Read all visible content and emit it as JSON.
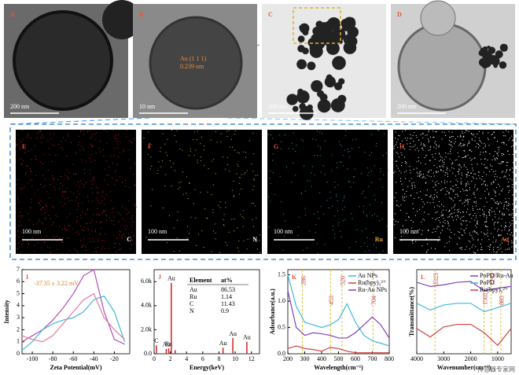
{
  "images": [
    {
      "label": "A",
      "scale_bar": "200 nm"
    },
    {
      "label": "B",
      "scale_bar": "10 nm",
      "annotation": [
        "Au (1 1 1)",
        "0.239 nm"
      ]
    },
    {
      "label": "C",
      "scale_bar": "200 nm"
    },
    {
      "label": "D",
      "scale_bar": "200 nm"
    }
  ],
  "maps": [
    {
      "label": "E",
      "scale_bar": "100 nm",
      "element": "C"
    },
    {
      "label": "F",
      "scale_bar": "100 nm",
      "element": "N"
    },
    {
      "label": "G",
      "scale_bar": "100 nm",
      "element": "Ru"
    },
    {
      "label": "H",
      "scale_bar": "100 nm",
      "element": "Au"
    }
  ],
  "chart_data": [
    {
      "type": "line",
      "label": "I",
      "y_label": "Intensity",
      "x_label": "Zeta Potential(mV)",
      "annotation": "-37.35 ± 3.22 mV",
      "xlim": [
        -110,
        -5
      ],
      "ylim": [
        0,
        7
      ],
      "xticks": [
        -100,
        -80,
        -60,
        -40,
        -20
      ],
      "yticks": [
        0,
        1,
        2,
        3,
        4,
        5,
        6,
        7
      ],
      "x": [
        -110,
        -100,
        -90,
        -80,
        -70,
        -60,
        -50,
        -40,
        -30,
        -20,
        -10
      ],
      "series": [
        {
          "color": "#b04fb8",
          "values": [
            1.0,
            1.5,
            2.0,
            2.8,
            3.8,
            5.0,
            6.5,
            7.0,
            3.5,
            1.2,
            0.8
          ]
        },
        {
          "color": "#3fb8d8",
          "values": [
            0.3,
            1.0,
            2.0,
            2.5,
            2.8,
            3.0,
            3.5,
            4.5,
            4.8,
            3.5,
            1.0
          ]
        },
        {
          "color": "#e07aa0",
          "values": [
            1.5,
            1.2,
            1.0,
            1.5,
            2.5,
            3.5,
            4.5,
            5.0,
            3.0,
            2.0,
            1.2
          ]
        }
      ]
    },
    {
      "type": "bar",
      "label": "J",
      "x_label": "Energy(keV)",
      "color": "#d02020",
      "xlim": [
        0,
        13
      ],
      "ylim": [
        0,
        7000
      ],
      "xticks": [
        0,
        2,
        4,
        6,
        8,
        10,
        12
      ],
      "yticks": [
        {
          "value": 0,
          "label": "0.0"
        },
        {
          "value": 2000,
          "label": "2.0k"
        },
        {
          "value": 4000,
          "label": "4.0k"
        },
        {
          "value": 6000,
          "label": "6.0k"
        }
      ],
      "x": [
        0.28,
        1.5,
        1.8,
        2.12,
        2.6,
        8.5,
        9.71,
        11.44
      ],
      "values": [
        700,
        400,
        450,
        5900,
        300,
        500,
        1300,
        1000
      ],
      "peak_labels": [
        "C",
        "Au",
        "Ru",
        "Au",
        null,
        "Au",
        "Au",
        "Au"
      ],
      "table": {
        "header": [
          "Element",
          "at%"
        ],
        "rows": [
          [
            "Au",
            86.53
          ],
          [
            "Ru",
            1.14
          ],
          [
            "C",
            11.43
          ],
          [
            "N",
            0.9
          ]
        ]
      }
    },
    {
      "type": "line",
      "label": "K",
      "y_label": "Adsorbance(a.u.)",
      "x_label": "Wavelength(cm⁻¹)",
      "xlim": [
        200,
        800
      ],
      "ylim": [
        0,
        1.6
      ],
      "xticks": [
        200,
        300,
        400,
        500,
        600,
        700,
        800
      ],
      "yticks": [
        {
          "value": 0,
          "label": "0.0"
        },
        0.5,
        {
          "value": 1,
          "label": "1.0"
        },
        1.5
      ],
      "markers": [
        286,
        453,
        520,
        704
      ],
      "x": [
        200,
        250,
        300,
        350,
        400,
        450,
        500,
        550,
        600,
        650,
        700,
        750,
        800
      ],
      "series": [
        {
          "name": "Au NPs",
          "color": "#3fb8d8",
          "values": [
            1.5,
            0.9,
            0.6,
            0.55,
            0.5,
            0.55,
            0.65,
            0.95,
            0.6,
            0.35,
            0.25,
            0.2,
            0.15
          ]
        },
        {
          "name": "Ru(bpy)₃²⁺",
          "color": "#d04040",
          "values": [
            0.1,
            0.15,
            0.1,
            0.08,
            0.05,
            0.12,
            0.1,
            0.05,
            0.02,
            0.02,
            0.02,
            0.02,
            0.02
          ]
        },
        {
          "name": "Ru-Au NPs",
          "color": "#8040c0",
          "values": [
            1.2,
            0.5,
            0.35,
            0.4,
            0.38,
            0.35,
            0.3,
            0.3,
            0.4,
            0.55,
            0.7,
            0.55,
            0.3
          ]
        }
      ]
    },
    {
      "type": "line",
      "label": "L",
      "y_label": "Transmittance(%)",
      "x_label": "Wavenumber(cm⁻¹)",
      "xlim": [
        4000,
        500
      ],
      "ylim": [
        0,
        10
      ],
      "xticks": [
        4000,
        3000,
        2000,
        1000
      ],
      "markers": [
        3323,
        1502,
        1242,
        883
      ],
      "x": [
        4000,
        3500,
        3000,
        2500,
        2000,
        1500,
        1000,
        500
      ],
      "series": [
        {
          "name": "PoPD/Ru-Au",
          "color": "#8040c0",
          "values": [
            8.5,
            8.0,
            8.2,
            8.5,
            8.6,
            7.5,
            7.8,
            8
          ]
        },
        {
          "name": "PoPD",
          "color": "#3fb8d8",
          "values": [
            6,
            5.2,
            5.8,
            6,
            6,
            5,
            5.5,
            6
          ]
        },
        {
          "name": "Ru(bpy)₃²⁺",
          "color": "#d04040",
          "values": [
            3,
            2,
            3.2,
            3.5,
            3.5,
            2.5,
            1,
            3
          ]
        }
      ]
    }
  ],
  "watermark": "传感器专家网"
}
